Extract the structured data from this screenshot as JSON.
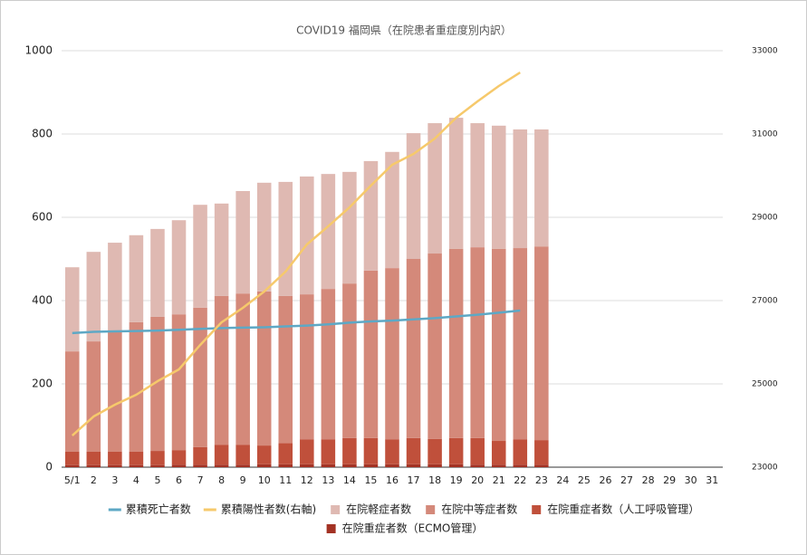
{
  "chart_data": {
    "type": "bar",
    "title": "COVID19  福岡県（在院患者重症度別内訳）",
    "categories": [
      "5/1",
      "2",
      "3",
      "4",
      "5",
      "6",
      "7",
      "8",
      "9",
      "10",
      "11",
      "12",
      "13",
      "14",
      "15",
      "16",
      "17",
      "18",
      "19",
      "20",
      "21",
      "22",
      "23",
      "24",
      "25",
      "26",
      "27",
      "28",
      "29",
      "30",
      "31"
    ],
    "ylim": [
      0,
      1000
    ],
    "yticks": [
      0,
      200,
      400,
      600,
      800,
      1000
    ],
    "y2lim": [
      23000,
      33000
    ],
    "y2ticks": [
      23000,
      25000,
      27000,
      29000,
      31000,
      33000
    ],
    "grid": true,
    "series": [
      {
        "name": "累積死亡者数",
        "type": "line",
        "color": "#5ea8c5",
        "values": [
          322,
          325,
          326,
          327,
          328,
          330,
          332,
          334,
          335,
          336,
          338,
          340,
          343,
          347,
          350,
          352,
          355,
          358,
          362,
          366,
          371,
          376,
          null,
          null,
          null,
          null,
          null,
          null,
          null,
          null,
          null
        ]
      },
      {
        "name": "累積陽性者数(右軸)",
        "type": "line",
        "axis": "y2",
        "color": "#f6c96b",
        "values": [
          23760,
          24217,
          24500,
          24739,
          25065,
          25348,
          25935,
          26478,
          26826,
          27217,
          27696,
          28348,
          28783,
          29239,
          29761,
          30261,
          30522,
          30891,
          31391,
          31783,
          32152,
          32478,
          null,
          null,
          null,
          null,
          null,
          null,
          null,
          null,
          null
        ]
      },
      {
        "name": "在院軽症者数",
        "type": "bar",
        "color": "#dfb9b2",
        "values": [
          202,
          215,
          211,
          209,
          211,
          226,
          247,
          222,
          246,
          261,
          274,
          283,
          276,
          268,
          263,
          279,
          302,
          313,
          315,
          298,
          296,
          285,
          281,
          null,
          null,
          null,
          null,
          null,
          null,
          null,
          null
        ]
      },
      {
        "name": "在院中等症者数",
        "type": "bar",
        "color": "#d4897a",
        "values": [
          241,
          265,
          291,
          311,
          322,
          326,
          335,
          357,
          363,
          370,
          353,
          348,
          361,
          371,
          402,
          411,
          430,
          445,
          454,
          458,
          461,
          459,
          465,
          null,
          null,
          null,
          null,
          null,
          null,
          null,
          null
        ]
      },
      {
        "name": "在院重症者数（人工呼吸管理）",
        "type": "bar",
        "color": "#c0503b",
        "values": [
          32,
          32,
          32,
          32,
          34,
          35,
          42,
          48,
          48,
          45,
          51,
          60,
          60,
          63,
          63,
          60,
          63,
          61,
          63,
          64,
          57,
          61,
          59,
          null,
          null,
          null,
          null,
          null,
          null,
          null,
          null
        ]
      },
      {
        "name": "在院重症者数（ECMO管理）",
        "type": "bar",
        "color": "#a33224",
        "values": [
          5,
          5,
          5,
          5,
          5,
          6,
          6,
          6,
          6,
          7,
          7,
          7,
          7,
          7,
          7,
          7,
          7,
          7,
          7,
          6,
          6,
          6,
          6,
          null,
          null,
          null,
          null,
          null,
          null,
          null,
          null
        ]
      }
    ]
  }
}
